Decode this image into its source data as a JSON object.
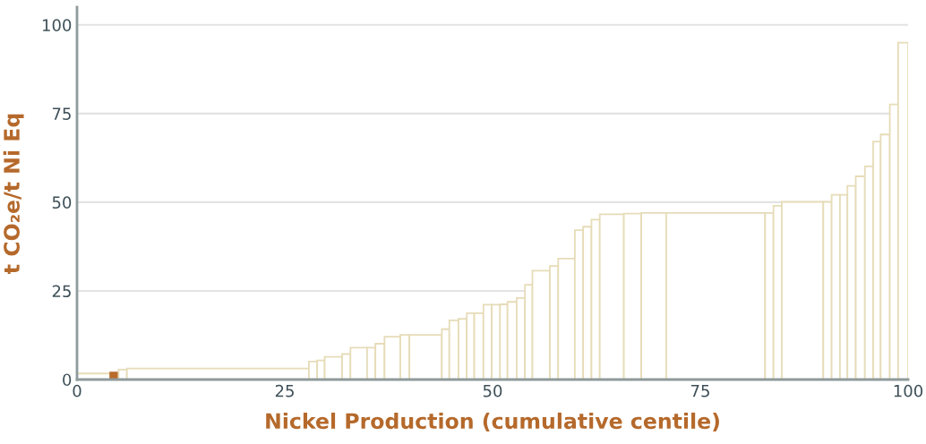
{
  "chart_data": {
    "type": "histogram",
    "xlabel": "Nickel Production (cumulative centile)",
    "ylabel": "t CO₂e/t Ni Eq",
    "bins": [
      0,
      4.0,
      5.0,
      6.0,
      27.9,
      28.9,
      29.8,
      31.9,
      32.9,
      34.9,
      35.9,
      37.0,
      38.9,
      40.0,
      43.9,
      44.8,
      45.9,
      46.9,
      47.8,
      48.9,
      49.9,
      50.9,
      51.8,
      52.9,
      53.9,
      54.8,
      56.9,
      57.9,
      59.9,
      60.9,
      61.9,
      62.9,
      65.8,
      67.9,
      70.9,
      82.8,
      83.8,
      84.8,
      89.8,
      90.8,
      91.8,
      92.7,
      93.7,
      94.8,
      95.8,
      96.7,
      97.8,
      98.8,
      100
    ],
    "values": [
      1.7,
      2.0,
      2.8,
      3.1,
      5.1,
      5.4,
      6.4,
      7.2,
      9.0,
      9.0,
      10.1,
      12.1,
      12.6,
      12.6,
      14.2,
      16.7,
      17.1,
      18.7,
      18.7,
      21.1,
      21.1,
      21.2,
      21.9,
      23.0,
      26.7,
      30.7,
      32.0,
      34.1,
      42.1,
      43.1,
      45.1,
      46.6,
      46.8,
      47.0,
      47.0,
      47.0,
      49.0,
      50.1,
      50.1,
      52.1,
      52.1,
      54.6,
      57.3,
      60.1,
      67.1,
      69.1,
      77.6,
      95.0
    ],
    "colors": [
      "#e6dcb8",
      "#b86b2c",
      "#e6dcb8",
      "#e6dcb8",
      "#e6dcb8",
      "#e6dcb8",
      "#e6dcb8",
      "#e6dcb8",
      "#e6dcb8",
      "#e6dcb8",
      "#e6dcb8",
      "#e6dcb8",
      "#e6dcb8",
      "#e6dcb8",
      "#e6dcb8",
      "#e6dcb8",
      "#e6dcb8",
      "#e6dcb8",
      "#e6dcb8",
      "#e6dcb8",
      "#e6dcb8",
      "#e6dcb8",
      "#e6dcb8",
      "#e6dcb8",
      "#e6dcb8",
      "#e6dcb8",
      "#e6dcb8",
      "#e6dcb8",
      "#e6dcb8",
      "#e6dcb8",
      "#e6dcb8",
      "#e6dcb8",
      "#e6dcb8",
      "#e6dcb8",
      "#e6dcb8",
      "#e6dcb8",
      "#e6dcb8",
      "#e6dcb8",
      "#e6dcb8",
      "#e6dcb8",
      "#e6dcb8",
      "#e6dcb8",
      "#e6dcb8",
      "#e6dcb8",
      "#e6dcb8",
      "#e6dcb8",
      "#e6dcb8",
      "#e6dcb8"
    ],
    "xlim": [
      0,
      100
    ],
    "xticks": [
      0,
      25,
      50,
      75,
      100
    ],
    "ylim": [
      0,
      105
    ],
    "yticks": [
      0,
      25,
      50,
      75,
      100
    ],
    "grid": "y"
  }
}
